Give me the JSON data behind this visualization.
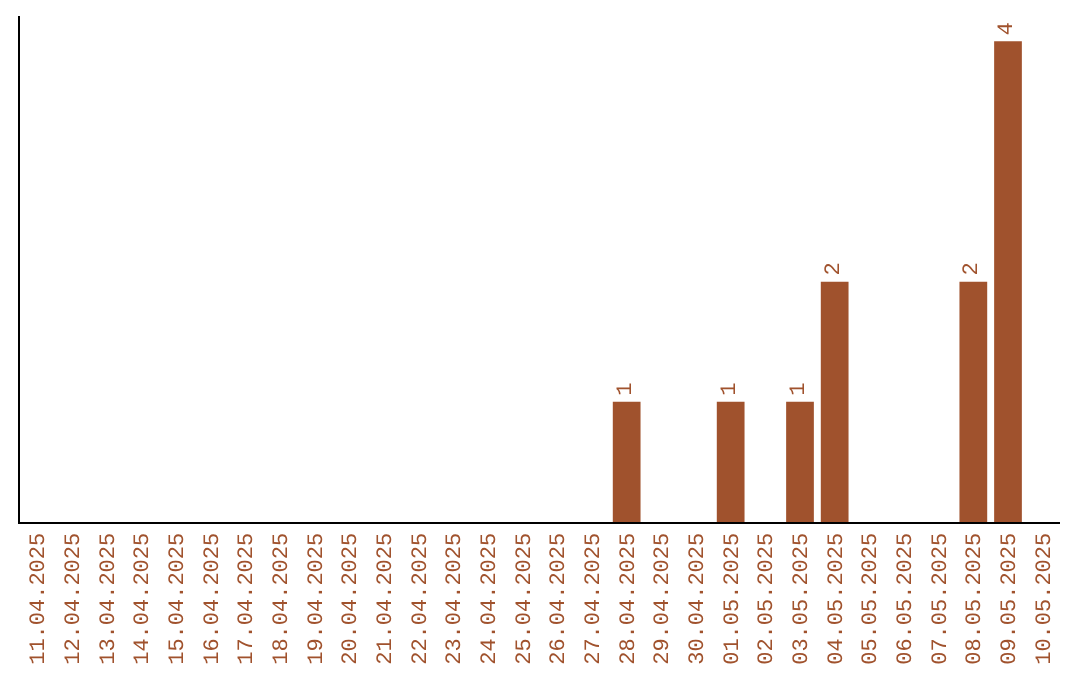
{
  "chart_data": {
    "type": "bar",
    "categories": [
      "11.04.2025",
      "12.04.2025",
      "13.04.2025",
      "14.04.2025",
      "15.04.2025",
      "16.04.2025",
      "17.04.2025",
      "18.04.2025",
      "19.04.2025",
      "20.04.2025",
      "21.04.2025",
      "22.04.2025",
      "23.04.2025",
      "24.04.2025",
      "25.04.2025",
      "26.04.2025",
      "27.04.2025",
      "28.04.2025",
      "29.04.2025",
      "30.04.2025",
      "01.05.2025",
      "02.05.2025",
      "03.05.2025",
      "04.05.2025",
      "05.05.2025",
      "06.05.2025",
      "07.05.2025",
      "08.05.2025",
      "09.05.2025",
      "10.05.2025"
    ],
    "values": [
      null,
      null,
      null,
      null,
      null,
      null,
      null,
      null,
      null,
      null,
      null,
      null,
      null,
      null,
      null,
      null,
      null,
      1,
      null,
      null,
      1,
      null,
      1,
      2,
      null,
      null,
      null,
      2,
      4,
      null
    ],
    "color": "#a0522d",
    "tick_labels": "x",
    "data_labels": true
  }
}
